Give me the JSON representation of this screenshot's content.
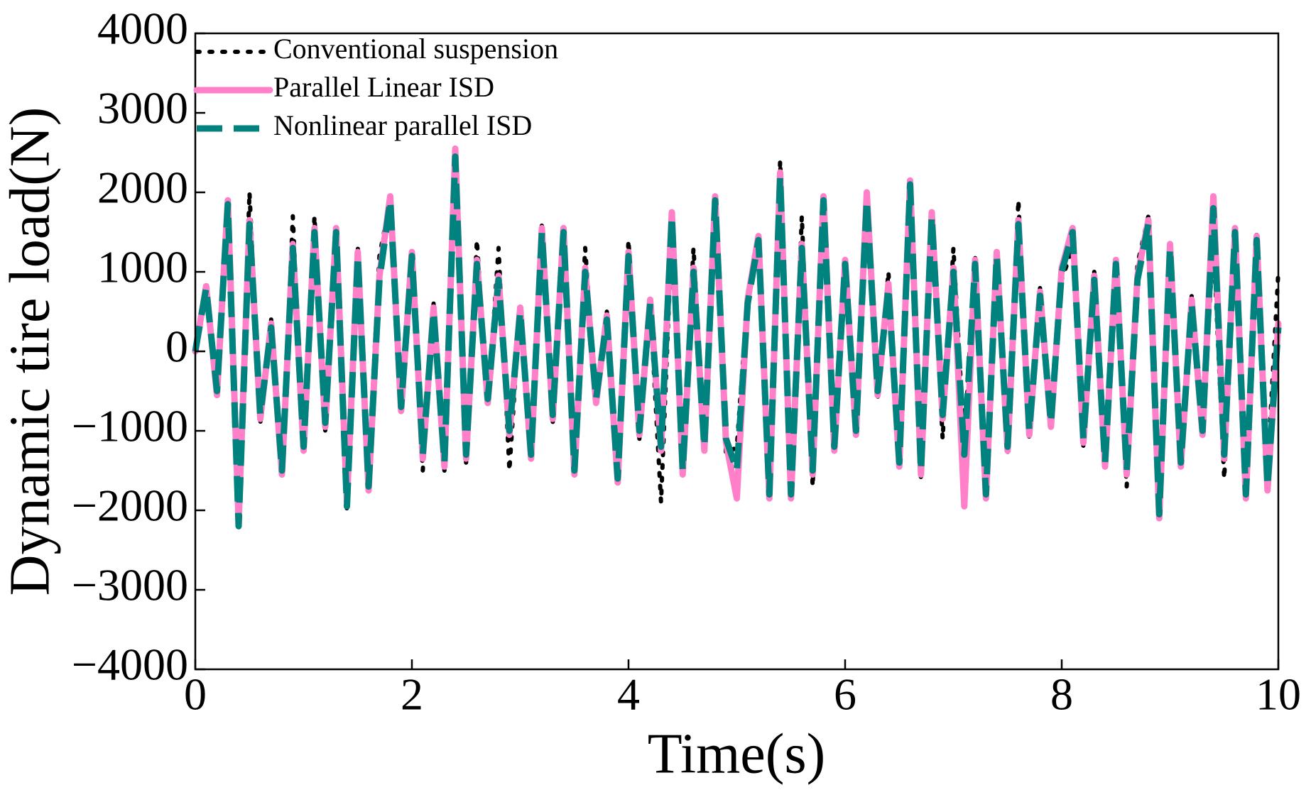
{
  "chart_data": {
    "type": "line",
    "xlabel": "Time(s)",
    "ylabel": "Dynamic tire load(N)",
    "xlim": [
      0,
      10
    ],
    "xticks": [
      0,
      2,
      4,
      6,
      8,
      10
    ],
    "ylim": [
      -4000,
      4000
    ],
    "yticks": [
      {
        "value": -4000,
        "label": "−4000"
      },
      {
        "value": -3000,
        "label": "−3000"
      },
      {
        "value": -2000,
        "label": "−2000"
      },
      {
        "value": -1000,
        "label": "−1000"
      },
      0,
      1000,
      2000,
      3000,
      4000
    ],
    "legend": "upper left",
    "x": [
      0,
      0.1,
      0.2,
      0.3,
      0.4,
      0.5,
      0.6,
      0.7,
      0.8,
      0.9,
      1,
      1.1,
      1.2,
      1.3,
      1.4,
      1.5,
      1.6,
      1.7,
      1.8,
      1.9,
      2,
      2.1,
      2.2,
      2.3,
      2.4,
      2.5,
      2.6,
      2.7,
      2.8,
      2.9,
      3,
      3.1,
      3.2,
      3.3,
      3.4,
      3.5,
      3.6,
      3.7,
      3.8,
      3.9,
      4,
      4.1,
      4.2,
      4.3,
      4.4,
      4.5,
      4.6,
      4.7,
      4.8,
      4.9,
      5,
      5.1,
      5.2,
      5.3,
      5.4,
      5.5,
      5.6,
      5.7,
      5.8,
      5.9,
      6,
      6.1,
      6.2,
      6.3,
      6.4,
      6.5,
      6.6,
      6.7,
      6.8,
      6.9,
      7,
      7.1,
      7.2,
      7.3,
      7.4,
      7.5,
      7.6,
      7.7,
      7.8,
      7.9,
      8,
      8.1,
      8.2,
      8.3,
      8.4,
      8.5,
      8.6,
      8.7,
      8.8,
      8.9,
      9,
      9.1,
      9.2,
      9.3,
      9.4,
      9.5,
      9.6,
      9.7,
      9.8,
      9.9,
      10
    ],
    "series": [
      {
        "name": "Conventional suspension",
        "color": "#000000",
        "style": "dotted",
        "values": [
          0,
          850,
          -450,
          1700,
          -2000,
          2000,
          -900,
          400,
          -1600,
          1700,
          -1300,
          1700,
          -1000,
          1400,
          -2000,
          1300,
          -1500,
          1200,
          1900,
          -800,
          1300,
          -1500,
          600,
          -1500,
          2400,
          -1400,
          1400,
          -700,
          1300,
          -1500,
          600,
          -1200,
          1600,
          -900,
          1600,
          -1400,
          1300,
          -700,
          500,
          -1500,
          1400,
          -1100,
          600,
          -1900,
          1500,
          -1400,
          1300,
          -1100,
          1700,
          -1300,
          -1200,
          700,
          1300,
          -1700,
          2400,
          -1800,
          1700,
          -1700,
          1800,
          -1000,
          1100,
          -1100,
          1900,
          -600,
          1000,
          -1400,
          2000,
          -1600,
          1700,
          -1100,
          1300,
          -1200,
          1200,
          -1700,
          1300,
          -1300,
          1900,
          -1100,
          800,
          -900,
          900,
          1300,
          -1200,
          1000,
          -1500,
          1000,
          -1700,
          1100,
          1700,
          -2000,
          1400,
          -1500,
          700,
          -1000,
          1400,
          -1600,
          1300,
          -1800,
          1500,
          -1500,
          1000
        ]
      },
      {
        "name": "Parallel Linear ISD",
        "color": "#ff80c8",
        "style": "solid",
        "values": [
          0,
          820,
          -550,
          1900,
          -2150,
          1650,
          -850,
          350,
          -1550,
          1350,
          -1250,
          1550,
          -950,
          1550,
          -1900,
          1250,
          -1750,
          950,
          1950,
          -750,
          1250,
          -1350,
          550,
          -1450,
          2550,
          -1350,
          1150,
          -650,
          950,
          -1050,
          550,
          -1350,
          1550,
          -850,
          1550,
          -1550,
          1050,
          -650,
          450,
          -1650,
          1250,
          -1050,
          650,
          -1250,
          1750,
          -1550,
          1050,
          -1250,
          1950,
          -1150,
          -1850,
          650,
          1450,
          -1850,
          2250,
          -1850,
          1350,
          -1550,
          1950,
          -1250,
          1150,
          -1050,
          2000,
          -550,
          850,
          -1450,
          2150,
          -1550,
          1750,
          -850,
          1050,
          -1950,
          1150,
          -1850,
          1250,
          -1250,
          1650,
          -1050,
          750,
          -950,
          1050,
          1550,
          -1150,
          950,
          -1450,
          1150,
          -1550,
          950,
          1650,
          -2100,
          1350,
          -1450,
          650,
          -1050,
          1950,
          -1350,
          1550,
          -1850,
          1450,
          -1750,
          350
        ]
      },
      {
        "name": "Nonlinear parallel ISD",
        "color": "#00827f",
        "style": "dashed",
        "values": [
          0,
          800,
          -500,
          1850,
          -2200,
          1600,
          -800,
          300,
          -1500,
          1300,
          -1200,
          1500,
          -900,
          1500,
          -1950,
          1200,
          -1700,
          900,
          1900,
          -700,
          1200,
          -1300,
          500,
          -1400,
          2450,
          -1300,
          1100,
          -600,
          900,
          -1000,
          500,
          -1300,
          1500,
          -800,
          1500,
          -1500,
          1000,
          -600,
          400,
          -1600,
          1200,
          -1000,
          600,
          -1200,
          1700,
          -1500,
          1000,
          -1200,
          1900,
          -1100,
          -1500,
          600,
          1400,
          -1800,
          2200,
          -1800,
          1300,
          -1500,
          1900,
          -1200,
          1100,
          -1000,
          1900,
          -500,
          800,
          -1400,
          2100,
          -1500,
          1700,
          -800,
          1000,
          -1300,
          1100,
          -1800,
          1200,
          -1200,
          1600,
          -1000,
          700,
          -900,
          1000,
          1500,
          -1100,
          900,
          -1400,
          1100,
          -1500,
          900,
          1600,
          -2050,
          1300,
          -1400,
          600,
          -1000,
          1800,
          -1300,
          1500,
          -1800,
          1400,
          -1700,
          300
        ]
      }
    ]
  }
}
